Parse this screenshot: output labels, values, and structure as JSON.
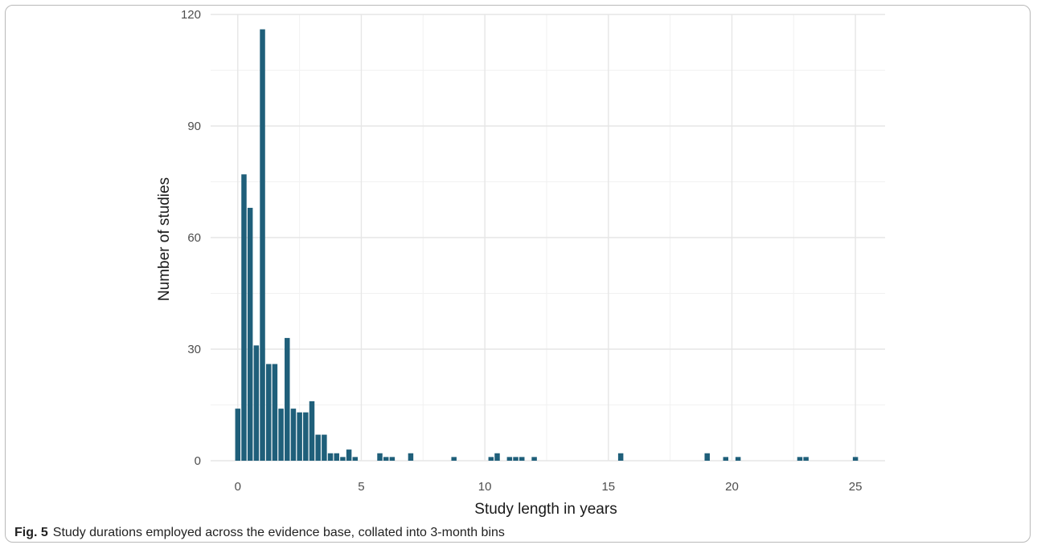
{
  "figure": {
    "label": "Fig. 5",
    "caption": "Study durations employed across the evidence base, collated into 3-month bins"
  },
  "chart_data": {
    "type": "bar",
    "title": "",
    "xlabel": "Study length in years",
    "ylabel": "Number of studies",
    "xlim": [
      -1.1,
      26.2
    ],
    "ylim": [
      0,
      120
    ],
    "x_ticks": [
      0,
      5,
      10,
      15,
      20,
      25
    ],
    "y_ticks": [
      0,
      30,
      60,
      90,
      120
    ],
    "grid": true,
    "bin_width": 0.25,
    "bar_color": "#1f5f7a",
    "x": [
      0,
      0.25,
      0.5,
      0.75,
      1.0,
      1.25,
      1.5,
      1.75,
      2.0,
      2.25,
      2.5,
      2.75,
      3.0,
      3.25,
      3.5,
      3.75,
      4.0,
      4.25,
      4.5,
      4.75,
      5.75,
      6.0,
      6.25,
      7.0,
      8.75,
      10.25,
      10.5,
      11.0,
      11.25,
      11.5,
      12.0,
      15.5,
      19.0,
      19.75,
      20.25,
      22.75,
      23.0,
      25.0
    ],
    "values": [
      14,
      77,
      68,
      31,
      116,
      26,
      26,
      14,
      33,
      14,
      13,
      13,
      16,
      7,
      7,
      2,
      2,
      1,
      3,
      1,
      2,
      1,
      1,
      2,
      1,
      1,
      2,
      1,
      1,
      1,
      1,
      2,
      2,
      1,
      1,
      1,
      1,
      1
    ]
  }
}
